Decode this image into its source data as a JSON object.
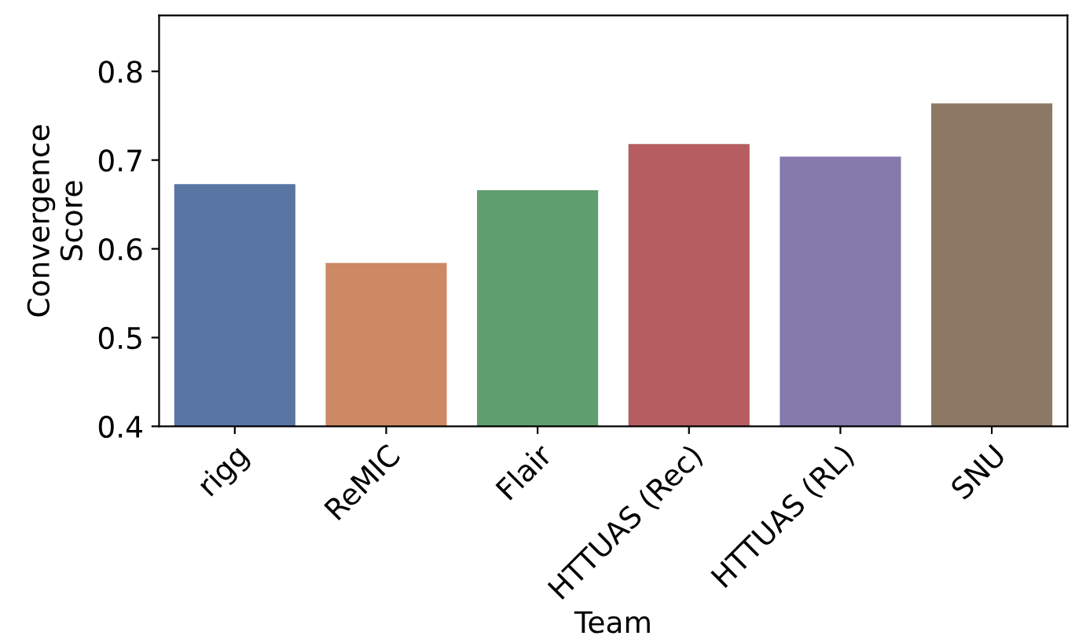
{
  "chart_data": {
    "type": "bar",
    "xlabel": "Team",
    "ylabel": "Convergence\nScore",
    "categories": [
      "rigg",
      "ReMIC",
      "Flair",
      "HTTUAS (Rec)",
      "HTTUAS (RL)",
      "SNU"
    ],
    "values": [
      0.673,
      0.584,
      0.666,
      0.718,
      0.704,
      0.764
    ],
    "colors": [
      "#5875a4",
      "#cc8963",
      "#5f9e6e",
      "#b55d60",
      "#857aab",
      "#8d7866"
    ],
    "ylim": [
      0.4,
      0.863
    ],
    "yticks": [
      0.4,
      0.5,
      0.6,
      0.7,
      0.8
    ],
    "grid": false
  }
}
